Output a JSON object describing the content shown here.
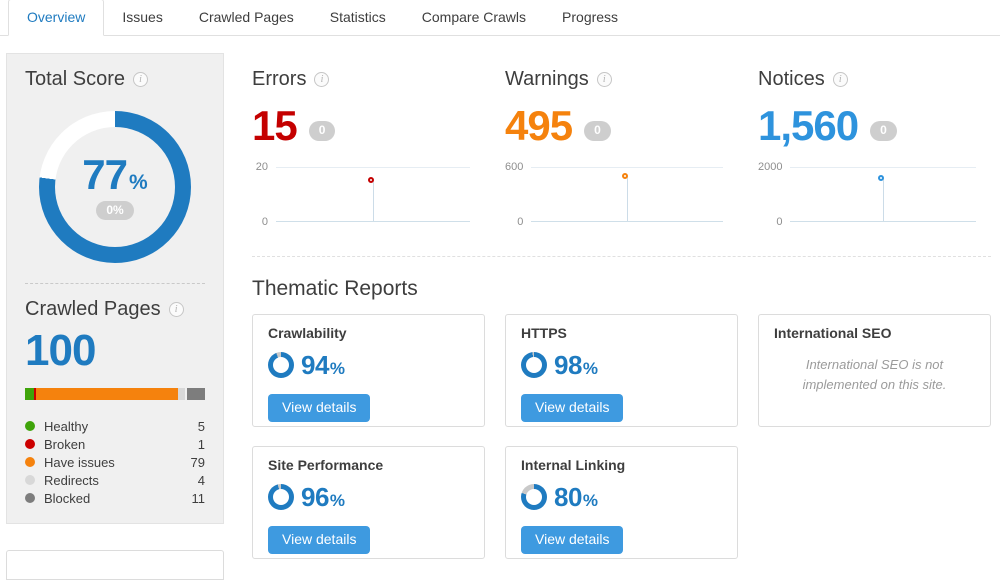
{
  "tabs": {
    "items": [
      {
        "label": "Overview",
        "active": true
      },
      {
        "label": "Issues",
        "active": false
      },
      {
        "label": "Crawled Pages",
        "active": false
      },
      {
        "label": "Statistics",
        "active": false
      },
      {
        "label": "Compare Crawls",
        "active": false
      },
      {
        "label": "Progress",
        "active": false
      }
    ]
  },
  "colors": {
    "blue_primary": "#1f7bc0",
    "blue_bright": "#2e93dd",
    "red": "#c40000",
    "orange": "#f5820d",
    "button_blue": "#3e9ae0",
    "pill_gray": "#cecece",
    "panel_bg": "#f0f0f0",
    "gauge_track": "#c9c9c9",
    "donut_track": "#ffffff"
  },
  "total_score": {
    "title": "Total Score",
    "percent": 77,
    "value_label": "77",
    "unit": "%",
    "delta_badge": "0%"
  },
  "crawled_pages": {
    "title": "Crawled Pages",
    "total": "100",
    "legend": [
      {
        "label": "Healthy",
        "value": "5",
        "percent": 5,
        "color": "#3fa40a",
        "gap_before": false
      },
      {
        "label": "Broken",
        "value": "1",
        "percent": 1,
        "color": "#cc0000",
        "gap_before": false
      },
      {
        "label": "Have issues",
        "value": "79",
        "percent": 79,
        "color": "#f5820d",
        "gap_before": false
      },
      {
        "label": "Redirects",
        "value": "4",
        "percent": 4,
        "color": "#d8d8d8",
        "gap_before": false
      },
      {
        "label": "Blocked",
        "value": "11",
        "percent": 11,
        "color": "#7d7d7d",
        "gap_before": true
      }
    ]
  },
  "stats": [
    {
      "title": "Errors",
      "value": "15",
      "delta_badge": "0",
      "chart": {
        "ymax_label": "20",
        "ymin_label": "0",
        "max": 20,
        "point": 15
      }
    },
    {
      "title": "Warnings",
      "value": "495",
      "delta_badge": "0",
      "chart": {
        "ymax_label": "600",
        "ymin_label": "0",
        "max": 600,
        "point": 495
      }
    },
    {
      "title": "Notices",
      "value": "1,560",
      "delta_badge": "0",
      "chart": {
        "ymax_label": "2000",
        "ymin_label": "0",
        "max": 2000,
        "point": 1560
      }
    }
  ],
  "thematic": {
    "title": "Thematic Reports",
    "view_details_label": "View details",
    "cards": [
      {
        "title": "Crawlability",
        "percent": 94,
        "value_label": "94",
        "unit": "%"
      },
      {
        "title": "HTTPS",
        "percent": 98,
        "value_label": "98",
        "unit": "%"
      },
      {
        "title": "International SEO",
        "message": "International SEO is not implemented on this site."
      },
      {
        "title": "Site Performance",
        "percent": 96,
        "value_label": "96",
        "unit": "%"
      },
      {
        "title": "Internal Linking",
        "percent": 80,
        "value_label": "80",
        "unit": "%"
      }
    ]
  }
}
